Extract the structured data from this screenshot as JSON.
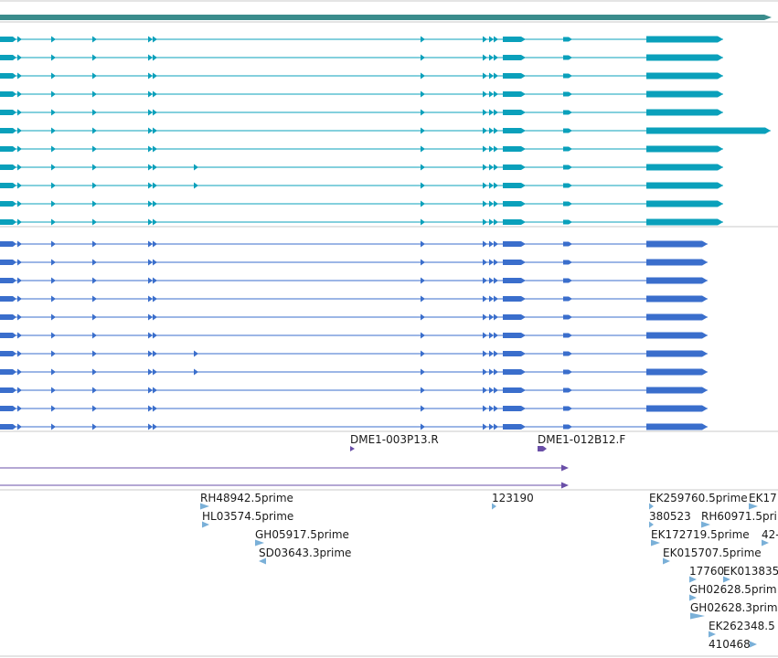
{
  "colors": {
    "gene_span": "#3a8c8c",
    "transcript_a": "#0aa0bb",
    "transcript_b": "#3a6ecc",
    "primer": "#6a4fa8",
    "est": "#7ab0d8",
    "separator": "#c8c8c8"
  },
  "primers": {
    "labels": [
      "DME1-003P13.R",
      "DME1-012B12.F"
    ]
  },
  "ests": {
    "labels": [
      "RH48942.5prime",
      "HL03574.5prime",
      "GH05917.5prime",
      "SD03643.3prime",
      "123190",
      "EK259760.5prime",
      "EK17",
      "380523",
      "RH60971.5pri",
      "EK172719.5prime",
      "42-",
      "EK015707.5prime",
      "17760",
      "EK013835",
      "GH02628.5prim",
      "GH02628.3prim",
      "EK262348.5",
      "410468"
    ]
  }
}
